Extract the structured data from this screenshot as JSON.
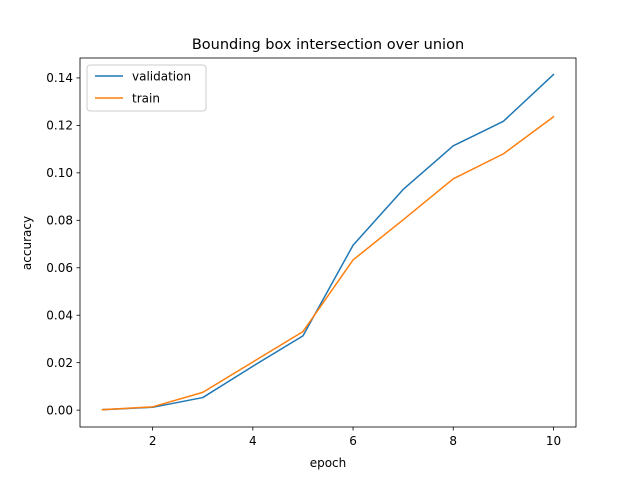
{
  "chart_data": {
    "type": "line",
    "title": "Bounding box intersection over union",
    "xlabel": "epoch",
    "ylabel": "accuracy",
    "x": [
      1,
      2,
      3,
      4,
      5,
      6,
      7,
      8,
      9,
      10
    ],
    "xlim": [
      0.55,
      10.45
    ],
    "ylim": [
      -0.0071,
      0.1484
    ],
    "xticks": [
      2,
      4,
      6,
      8,
      10
    ],
    "yticks": [
      0.0,
      0.02,
      0.04,
      0.06,
      0.08,
      0.1,
      0.12,
      0.14
    ],
    "ytick_labels": [
      "0.00",
      "0.02",
      "0.04",
      "0.06",
      "0.08",
      "0.10",
      "0.12",
      "0.14"
    ],
    "grid": false,
    "legend_placement": "top-left",
    "series": [
      {
        "name": "validation",
        "color": "#1f77b4",
        "values": [
          0.0002,
          0.0012,
          0.0053,
          0.0185,
          0.0313,
          0.0695,
          0.093,
          0.1114,
          0.1217,
          0.1414
        ]
      },
      {
        "name": "train",
        "color": "#ff7f0e",
        "values": [
          0.0002,
          0.0014,
          0.0075,
          0.0203,
          0.0331,
          0.0633,
          0.0802,
          0.0975,
          0.108,
          0.1236
        ]
      }
    ]
  }
}
